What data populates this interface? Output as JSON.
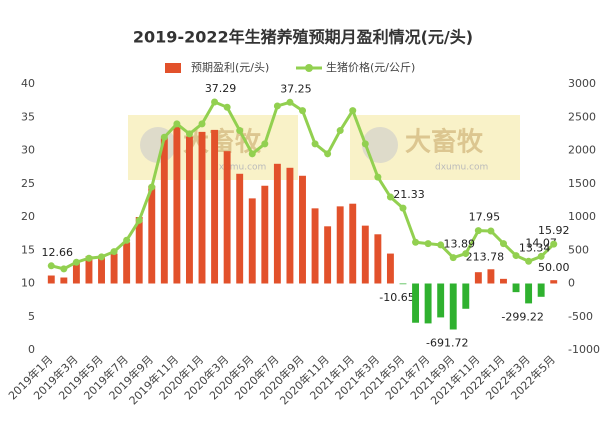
{
  "chart_data": {
    "type": "bar-line",
    "title": "2019-2022年生猪养殖预期月盈利情况(元/头)",
    "categories": [
      "2019年1月",
      null,
      "2019年3月",
      null,
      "2019年5月",
      null,
      "2019年7月",
      null,
      "2019年9月",
      null,
      "2019年11月",
      null,
      "2020年1月",
      null,
      "2020年3月",
      null,
      "2020年5月",
      null,
      "2020年7月",
      null,
      "2020年9月",
      null,
      "2020年11月",
      null,
      "2021年1月",
      null,
      "2021年3月",
      null,
      "2021年5月",
      null,
      "2021年7月",
      null,
      "2021年9月",
      null,
      "2021年11月",
      null,
      "2022年1月",
      null,
      "2022年3月",
      null,
      "2022年5月"
    ],
    "series": [
      {
        "name": "预期盈利(元/头)",
        "type": "bar",
        "axis": "y2",
        "color": "#e2512b",
        "negative_color": "#2fb12f",
        "values": [
          120,
          90,
          330,
          410,
          390,
          450,
          620,
          1000,
          1470,
          2190,
          2380,
          2210,
          2280,
          2310,
          1990,
          1650,
          1280,
          1470,
          1800,
          1740,
          1620,
          1130,
          860,
          1160,
          1200,
          870,
          740,
          450,
          -10.65,
          -590,
          -600,
          -510,
          -691.72,
          -380,
          170,
          213.78,
          70,
          -130,
          -299.22,
          -200,
          50
        ],
        "value_labels": [
          null,
          null,
          null,
          null,
          null,
          null,
          null,
          null,
          null,
          null,
          null,
          null,
          null,
          null,
          null,
          null,
          null,
          null,
          null,
          null,
          null,
          null,
          null,
          null,
          null,
          null,
          null,
          null,
          "-10.65",
          null,
          null,
          null,
          "-691.72",
          null,
          null,
          "213.78",
          null,
          null,
          "-299.22",
          null,
          "50.00"
        ]
      },
      {
        "name": "生猪价格(元/公斤)",
        "type": "line",
        "axis": "y",
        "color": "#92d050",
        "values": [
          12.66,
          12.2,
          13.2,
          13.8,
          14,
          14.8,
          16.5,
          19.5,
          24.5,
          32,
          34,
          32.5,
          34,
          37.29,
          36.5,
          33,
          29.5,
          31,
          36.7,
          37.25,
          36,
          31,
          29.5,
          33,
          36,
          31,
          26,
          23,
          21.33,
          16.2,
          16,
          15.8,
          13.89,
          14.5,
          17.95,
          17.9,
          16,
          14.2,
          13.34,
          14.07,
          15.92
        ],
        "value_labels": [
          "12.66",
          null,
          null,
          null,
          null,
          null,
          null,
          null,
          null,
          null,
          null,
          null,
          null,
          "37.29",
          null,
          null,
          null,
          null,
          null,
          "37.25",
          null,
          null,
          null,
          null,
          null,
          null,
          null,
          null,
          "21.33",
          null,
          null,
          null,
          "13.89",
          null,
          "17.95",
          null,
          null,
          null,
          "13.34",
          "14.07",
          "15.92"
        ]
      }
    ],
    "ylim": [
      0,
      40
    ],
    "yticks": [
      0,
      5,
      10,
      15,
      20,
      25,
      30,
      35,
      40
    ],
    "y2lim": [
      -1000,
      3000
    ],
    "y2ticks": [
      -1000,
      -500,
      0,
      500,
      1000,
      1500,
      2000,
      2500,
      3000
    ],
    "watermark": {
      "name": "大畜牧",
      "url": "dxumu.com"
    }
  }
}
